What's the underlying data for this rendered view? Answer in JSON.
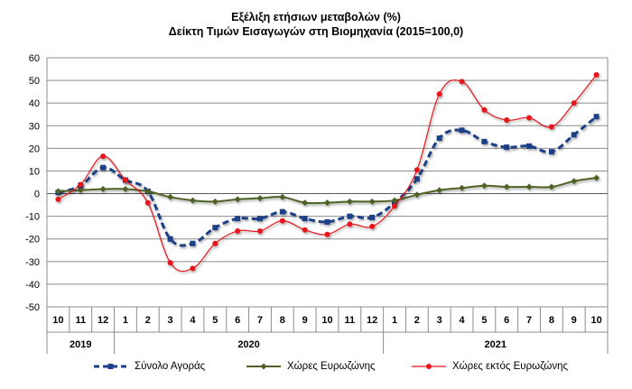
{
  "chart_data": {
    "type": "line",
    "title": "Εξέλιξη ετήσιων μεταβολών (%)",
    "subtitle": "Δείκτη Τιμών Εισαγωγών στη Βιομηχανία (2015=100,0)",
    "categories": [
      "10",
      "11",
      "12",
      "1",
      "2",
      "3",
      "4",
      "5",
      "6",
      "7",
      "8",
      "9",
      "10",
      "11",
      "12",
      "1",
      "2",
      "3",
      "4",
      "5",
      "6",
      "7",
      "8",
      "9",
      "10"
    ],
    "years": [
      {
        "label": "2019",
        "start": 0,
        "end": 2
      },
      {
        "label": "2020",
        "start": 3,
        "end": 14
      },
      {
        "label": "2021",
        "start": 15,
        "end": 24
      }
    ],
    "ylim": [
      -50,
      60
    ],
    "yticks": [
      -50,
      -40,
      -30,
      -20,
      -10,
      0,
      10,
      20,
      30,
      40,
      50,
      60
    ],
    "grid": true,
    "legend_position": "bottom",
    "series": [
      {
        "name": "Σύνολο Αγοράς",
        "color": "#1f3f86",
        "style": "dashed",
        "marker": "square",
        "values": [
          0.5,
          3.5,
          11.5,
          6,
          1,
          -20,
          -22,
          -15,
          -11,
          -11,
          -8,
          -11,
          -12.5,
          -10,
          -10.5,
          -4,
          6.5,
          24.5,
          28,
          23,
          20.5,
          21,
          18.5,
          26,
          34
        ]
      },
      {
        "name": "Χώρες Ευρωζώνης",
        "color": "#4f6228",
        "style": "solid",
        "marker": "diamond",
        "values": [
          1,
          1.5,
          2,
          2,
          1,
          -1.5,
          -3,
          -3.5,
          -2.5,
          -2,
          -1.5,
          -4,
          -4,
          -3.5,
          -3.5,
          -3,
          -0.5,
          1.5,
          2.5,
          3.5,
          3,
          3,
          3,
          5.5,
          7
        ]
      },
      {
        "name": "Χώρες εκτός Ευρωζώνης",
        "color": "#e8141a",
        "style": "solid",
        "marker": "circle",
        "values": [
          -2.5,
          4,
          16.5,
          6,
          -4,
          -30.5,
          -33,
          -22,
          -16.5,
          -16.5,
          -12,
          -16,
          -18,
          -13.5,
          -14.5,
          -5.5,
          10.5,
          44,
          49.5,
          37,
          32.5,
          33.5,
          29.5,
          40,
          52.5
        ]
      }
    ]
  }
}
